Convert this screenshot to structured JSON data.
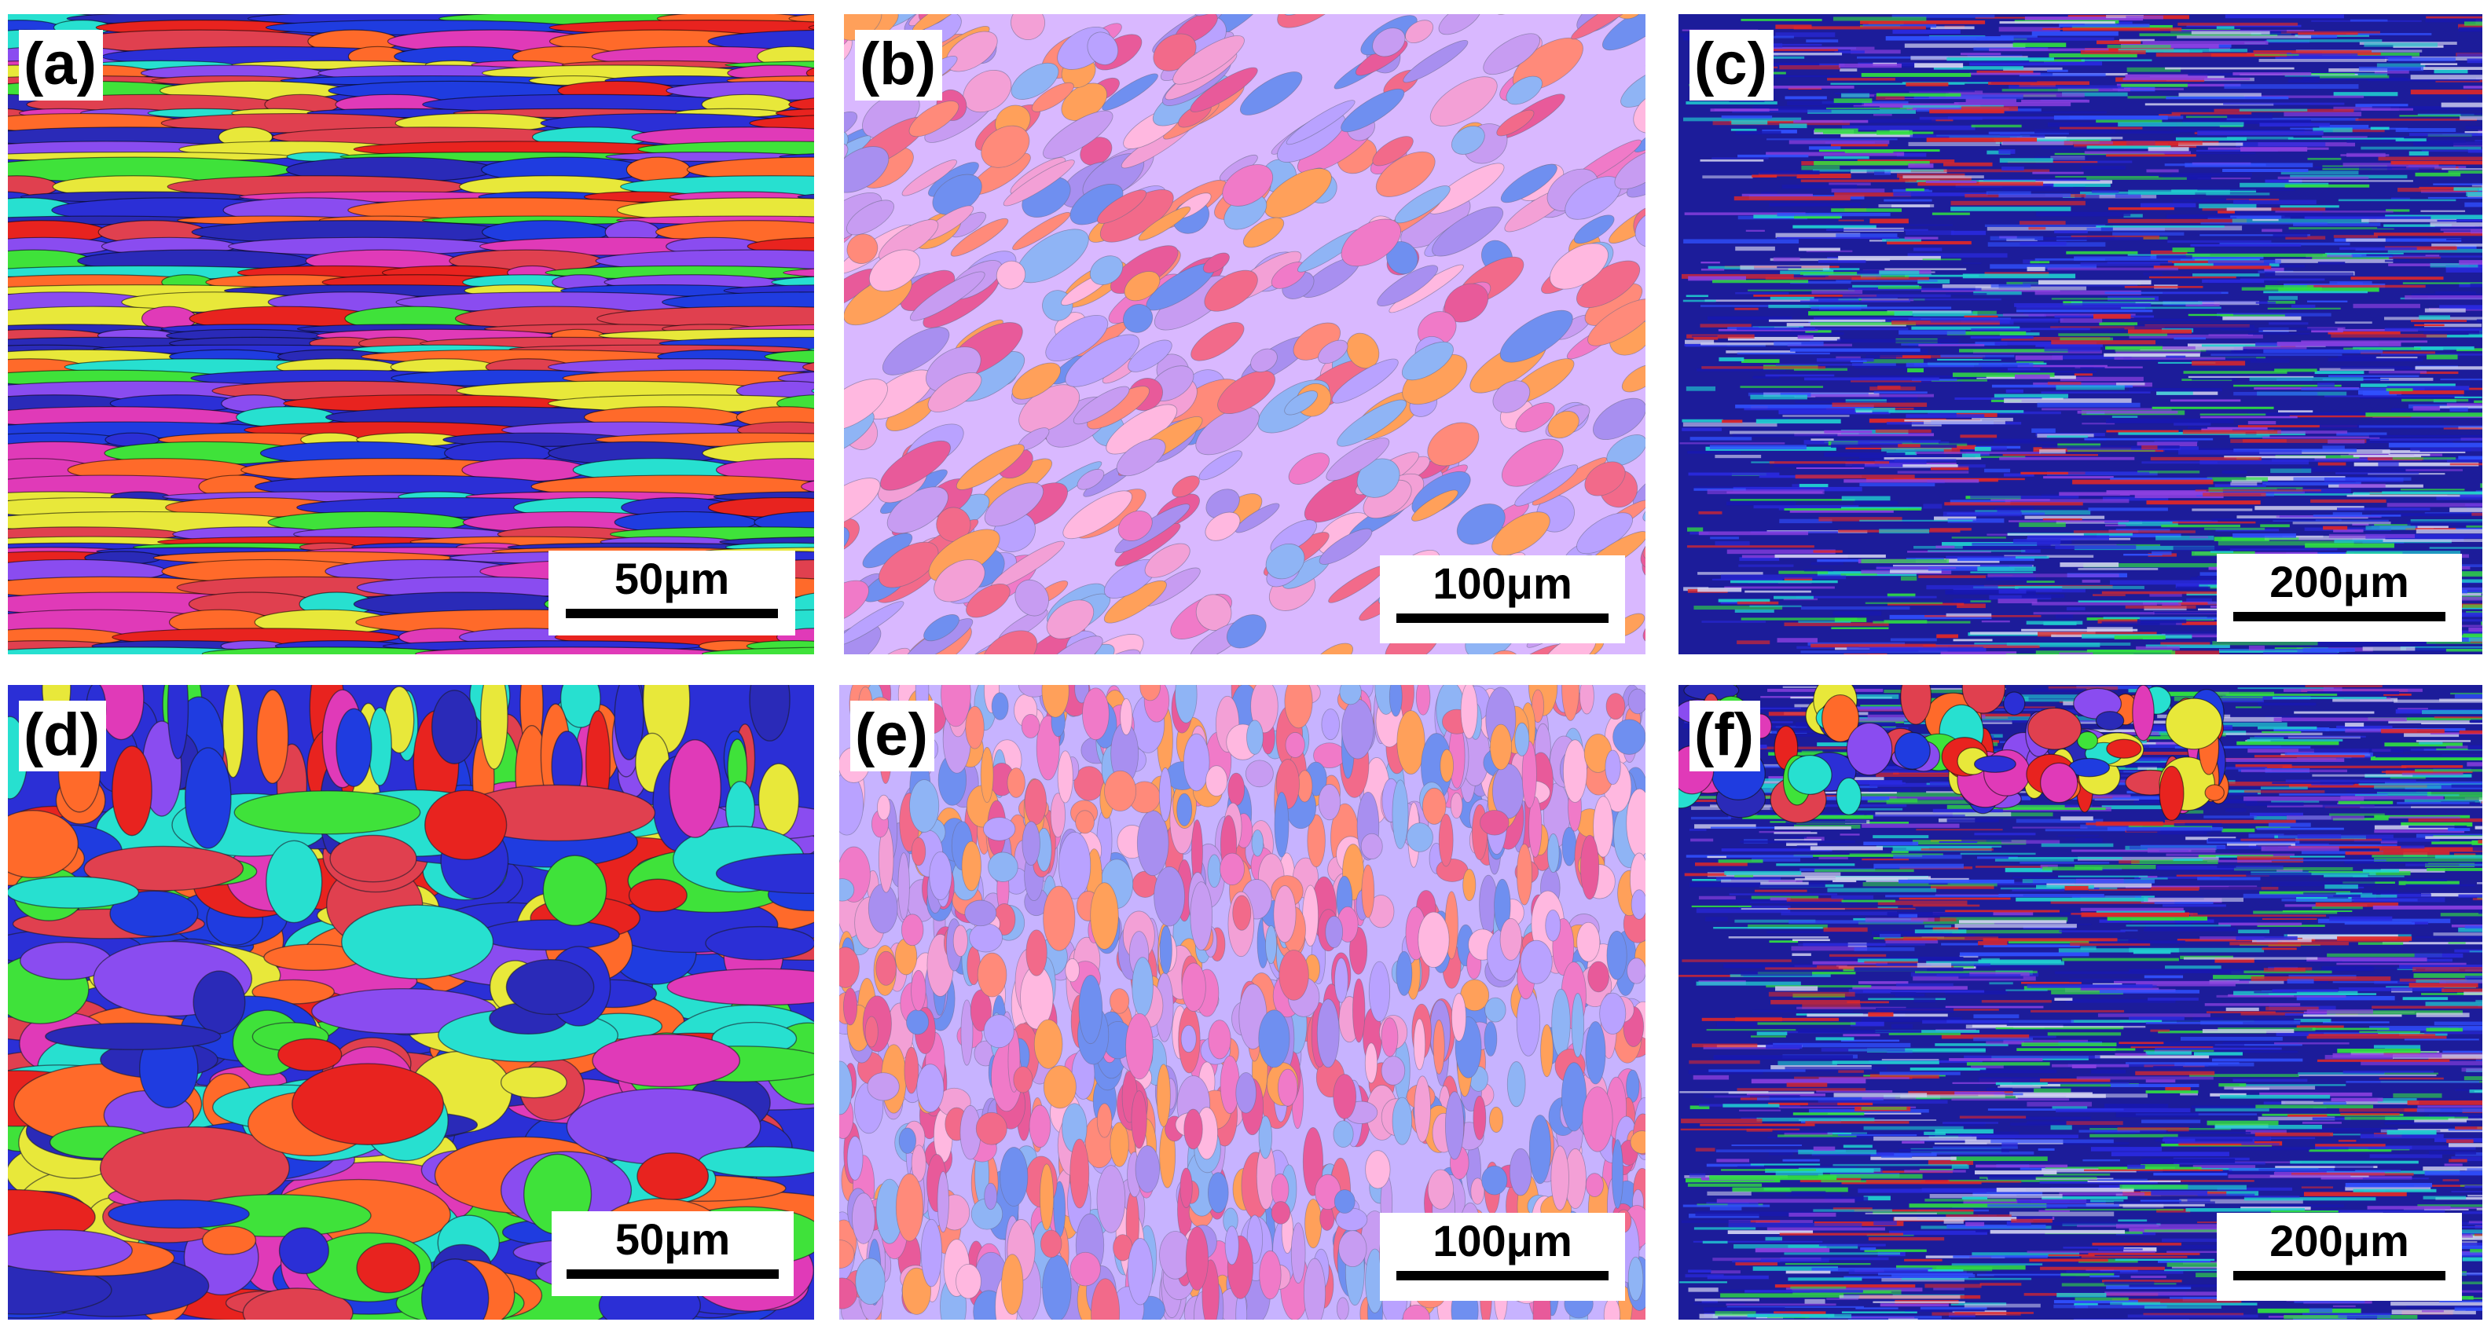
{
  "panels": [
    {
      "label": "(a)",
      "scale": "50μm"
    },
    {
      "label": "(b)",
      "scale": "100μm"
    },
    {
      "label": "(c)",
      "scale": "200μm"
    },
    {
      "label": "(d)",
      "scale": "50μm"
    },
    {
      "label": "(e)",
      "scale": "100μm"
    },
    {
      "label": "(f)",
      "scale": "200μm"
    }
  ],
  "colors": {
    "ebsd_red": "#e8231f",
    "ebsd_blue": "#2b2fd6",
    "ebsd_green": "#3fe23a",
    "ebsd_cyan": "#27e0d0",
    "ebsd_magenta": "#e03ab8",
    "ebsd_orange": "#ff6a2a",
    "ebsd_purple": "#8a4cf0",
    "ebsd_lilac": "#c79cf2",
    "ebsd_pink": "#f07ac8",
    "ebsd_yellow": "#e8e83a"
  }
}
